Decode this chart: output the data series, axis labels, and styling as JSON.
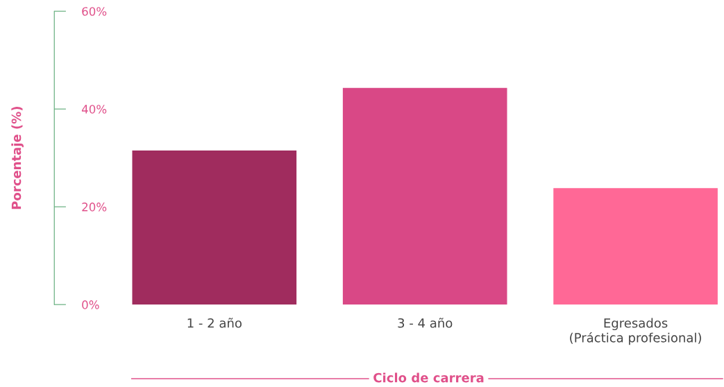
{
  "chart_data": {
    "type": "bar",
    "categories": [
      "1 - 2 año",
      "3 - 4 año",
      "Egresados\n(Práctica profesional)"
    ],
    "values": [
      31.5,
      44.3,
      23.8
    ],
    "colors": [
      "#a02c5e",
      "#d94886",
      "#ff6896"
    ],
    "xlabel": "Ciclo de carrera",
    "ylabel": "Porcentaje (%)",
    "ylim": [
      0,
      60
    ],
    "yticks": [
      {
        "value": 0,
        "label": "0%"
      },
      {
        "value": 20,
        "label": "20%"
      },
      {
        "value": 40,
        "label": "40%"
      },
      {
        "value": 60,
        "label": "60%"
      }
    ],
    "grid": false,
    "legend": false
  }
}
